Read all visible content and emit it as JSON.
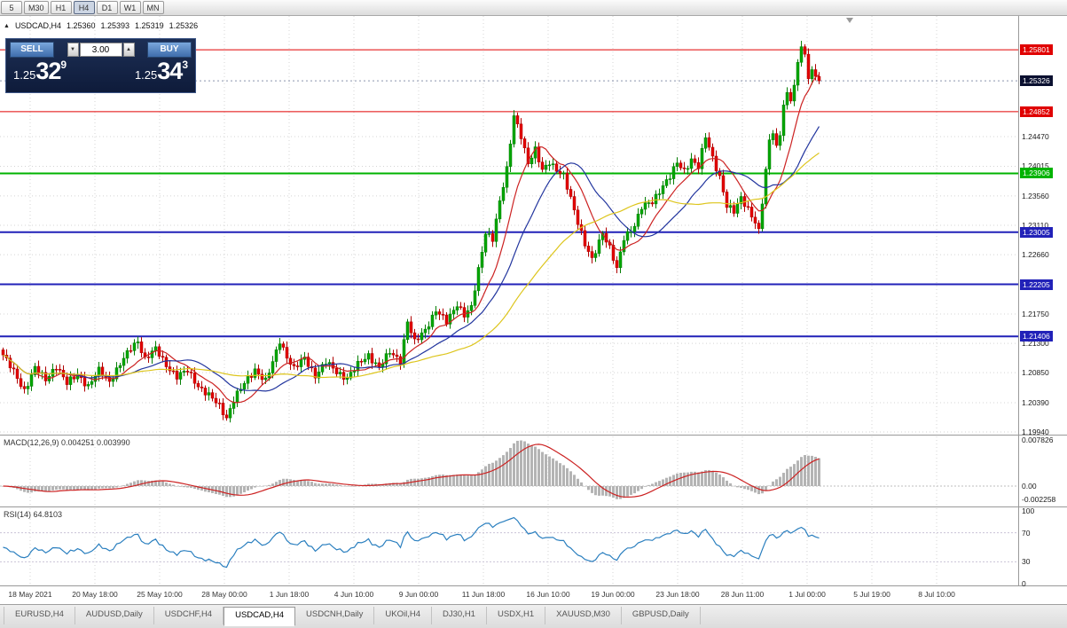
{
  "toolbar": {
    "timeframes": [
      {
        "label": "5",
        "active": false
      },
      {
        "label": "M30",
        "active": false
      },
      {
        "label": "H1",
        "active": false
      },
      {
        "label": "H4",
        "active": true
      },
      {
        "label": "D1",
        "active": false
      },
      {
        "label": "W1",
        "active": false
      },
      {
        "label": "MN",
        "active": false
      }
    ]
  },
  "quote_header": {
    "collapse_icon": "▲",
    "symbol": "USDCAD,H4",
    "open": "1.25360",
    "high": "1.25393",
    "low": "1.25319",
    "close": "1.25326"
  },
  "trade_panel": {
    "sell_label": "SELL",
    "buy_label": "BUY",
    "lot_size": "3.00",
    "spin_down_icon": "▼",
    "spin_up_icon": "▲",
    "sell_price": {
      "prefix": "1.25",
      "big": "32",
      "sup": "9"
    },
    "buy_price": {
      "prefix": "1.25",
      "big": "34",
      "sup": "3"
    }
  },
  "indicators": {
    "macd_label": "MACD(12,26,9) 0.004251 0.003990",
    "macd_axis": [
      "0.007826",
      "0.00",
      "-0.002258"
    ],
    "rsi_label": "RSI(14) 64.8103",
    "rsi_axis": [
      "100",
      "70",
      "30",
      "0"
    ]
  },
  "chart_data": {
    "type": "candlestick",
    "title": "USDCAD,H4",
    "ylim": [
      1.199,
      1.2632
    ],
    "y_axis_labels": [
      "1.24470",
      "1.24015",
      "1.23560",
      "1.23110",
      "1.22660",
      "1.21750",
      "1.21300",
      "1.20850",
      "1.20390",
      "1.19940"
    ],
    "time_labels": [
      "18 May 2021",
      "20 May 18:00",
      "25 May 10:00",
      "28 May 00:00",
      "1 Jun 18:00",
      "4 Jun 10:00",
      "9 Jun 00:00",
      "11 Jun 18:00",
      "16 Jun 10:00",
      "19 Jun 00:00",
      "23 Jun 18:00",
      "28 Jun 11:00",
      "1 Jul 00:00",
      "5 Jul 19:00",
      "8 Jul 10:00"
    ],
    "levels": [
      {
        "name": "resistance-1",
        "price": 1.25801,
        "label": "1.25801",
        "color": "#e00000",
        "width": 1
      },
      {
        "name": "resistance-2",
        "price": 1.24852,
        "label": "1.24852",
        "color": "#e00000",
        "width": 1
      },
      {
        "name": "support-green",
        "price": 1.23906,
        "label": "1.23906",
        "color": "#00b300",
        "width": 2
      },
      {
        "name": "support-blue-1",
        "price": 1.23005,
        "label": "1.23005",
        "color": "#2121b8",
        "width": 2
      },
      {
        "name": "support-blue-2",
        "price": 1.22205,
        "label": "1.22205",
        "color": "#2121b8",
        "width": 2
      },
      {
        "name": "support-blue-3",
        "price": 1.21406,
        "label": "1.21406",
        "color": "#2121b8",
        "width": 2
      }
    ],
    "bid": {
      "price": 1.25326,
      "label": "1.25326",
      "line_color": "#8a93ad",
      "label_bg": "#0a1030"
    },
    "candle_colors": {
      "up_fill": "#00a600",
      "up_stroke": "#067f06",
      "down_fill": "#e30000",
      "down_stroke": "#b00000"
    },
    "moving_averages": [
      {
        "period": 10,
        "color": "#cc2222"
      },
      {
        "period": 21,
        "color": "#22359e"
      },
      {
        "period": 45,
        "color": "#ddc51c"
      }
    ],
    "candles": {
      "count": 231,
      "close_path": [
        [
          0,
          1.2112
        ],
        [
          3,
          1.2086
        ],
        [
          6,
          1.2058
        ],
        [
          9,
          1.2092
        ],
        [
          12,
          1.2074
        ],
        [
          15,
          1.2096
        ],
        [
          18,
          1.2068
        ],
        [
          21,
          1.2083
        ],
        [
          24,
          1.2064
        ],
        [
          27,
          1.2088
        ],
        [
          30,
          1.2072
        ],
        [
          33,
          1.2098
        ],
        [
          36,
          1.2122
        ],
        [
          38,
          1.2134
        ],
        [
          40,
          1.2106
        ],
        [
          43,
          1.2121
        ],
        [
          46,
          1.2097
        ],
        [
          49,
          1.2079
        ],
        [
          52,
          1.2088
        ],
        [
          55,
          1.2065
        ],
        [
          58,
          1.205
        ],
        [
          61,
          1.2034
        ],
        [
          63,
          1.2016
        ],
        [
          65,
          1.2044
        ],
        [
          68,
          1.2068
        ],
        [
          71,
          1.209
        ],
        [
          74,
          1.2072
        ],
        [
          76,
          1.21
        ],
        [
          78,
          1.2134
        ],
        [
          80,
          1.211
        ],
        [
          82,
          1.2091
        ],
        [
          85,
          1.2107
        ],
        [
          88,
          1.2081
        ],
        [
          91,
          1.2101
        ],
        [
          94,
          1.2086
        ],
        [
          97,
          1.2077
        ],
        [
          100,
          1.2097
        ],
        [
          103,
          1.2112
        ],
        [
          106,
          1.2093
        ],
        [
          109,
          1.2116
        ],
        [
          112,
          1.2104
        ],
        [
          114,
          1.2164
        ],
        [
          116,
          1.2131
        ],
        [
          119,
          1.2151
        ],
        [
          122,
          1.2181
        ],
        [
          125,
          1.2162
        ],
        [
          128,
          1.2191
        ],
        [
          130,
          1.2174
        ],
        [
          132,
          1.2184
        ],
        [
          134,
          1.2242
        ],
        [
          136,
          1.2301
        ],
        [
          138,
          1.2291
        ],
        [
          140,
          1.2346
        ],
        [
          142,
          1.2396
        ],
        [
          144,
          1.2481
        ],
        [
          146,
          1.2449
        ],
        [
          148,
          1.2404
        ],
        [
          150,
          1.2426
        ],
        [
          152,
          1.2397
        ],
        [
          154,
          1.2409
        ],
        [
          156,
          1.2394
        ],
        [
          158,
          1.2386
        ],
        [
          160,
          1.2354
        ],
        [
          162,
          1.2317
        ],
        [
          164,
          1.2281
        ],
        [
          166,
          1.2257
        ],
        [
          169,
          1.2301
        ],
        [
          171,
          1.2277
        ],
        [
          173,
          1.2243
        ],
        [
          175,
          1.2291
        ],
        [
          178,
          1.2312
        ],
        [
          180,
          1.2339
        ],
        [
          183,
          1.2346
        ],
        [
          186,
          1.2373
        ],
        [
          188,
          1.2386
        ],
        [
          190,
          1.2406
        ],
        [
          192,
          1.2394
        ],
        [
          194,
          1.2413
        ],
        [
          196,
          1.2401
        ],
        [
          198,
          1.2446
        ],
        [
          200,
          1.2414
        ],
        [
          202,
          1.2386
        ],
        [
          204,
          1.2341
        ],
        [
          206,
          1.2331
        ],
        [
          208,
          1.2353
        ],
        [
          210,
          1.2337
        ],
        [
          212,
          1.2316
        ],
        [
          213,
          1.2301
        ],
        [
          214,
          1.2346
        ],
        [
          216,
          1.2441
        ],
        [
          217,
          1.2456
        ],
        [
          218,
          1.2431
        ],
        [
          219,
          1.2453
        ],
        [
          220,
          1.2496
        ],
        [
          221,
          1.2511
        ],
        [
          222,
          1.2504
        ],
        [
          223,
          1.2521
        ],
        [
          224,
          1.2561
        ],
        [
          225,
          1.2588
        ],
        [
          226,
          1.2571
        ],
        [
          227,
          1.2541
        ],
        [
          228,
          1.2549
        ],
        [
          229,
          1.2537
        ],
        [
          230,
          1.25326
        ]
      ]
    },
    "macd": {
      "params": [
        12,
        26,
        9
      ],
      "main": 0.004251,
      "signal": 0.00399,
      "ylim": [
        -0.00331,
        0.00843
      ],
      "histogram_color": "#b4b4b4",
      "signal_color": "#cc2222"
    },
    "rsi": {
      "period": 14,
      "value": 64.8103,
      "ylim": [
        0,
        100
      ],
      "levels": [
        70,
        30
      ],
      "color": "#2a7fbf"
    }
  },
  "tabs": [
    {
      "label": "EURUSD,H4",
      "active": false
    },
    {
      "label": "AUDUSD,Daily",
      "active": false
    },
    {
      "label": "USDCHF,H4",
      "active": false
    },
    {
      "label": "USDCAD,H4",
      "active": true
    },
    {
      "label": "USDCNH,Daily",
      "active": false
    },
    {
      "label": "UKOil,H4",
      "active": false
    },
    {
      "label": "DJ30,H1",
      "active": false
    },
    {
      "label": "USDX,H1",
      "active": false
    },
    {
      "label": "XAUUSD,M30",
      "active": false
    },
    {
      "label": "GBPUSD,Daily",
      "active": false
    }
  ]
}
